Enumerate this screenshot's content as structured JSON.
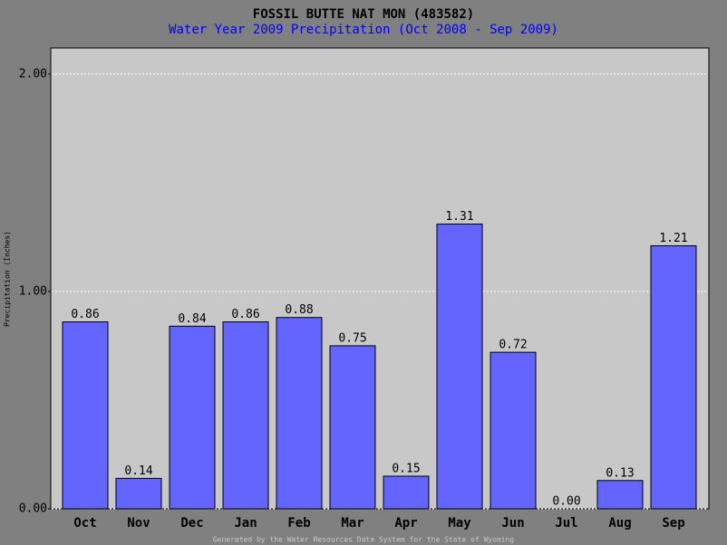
{
  "chart_data": {
    "type": "bar",
    "title": "FOSSIL BUTTE NAT MON (483582)",
    "subtitle": "Water Year 2009 Precipitation (Oct 2008 - Sep 2009)",
    "y_label": "Precipitation (Inches)",
    "footer": "Generated by the Water Resources Data System for the State of Wyoming",
    "categories": [
      "Oct",
      "Nov",
      "Dec",
      "Jan",
      "Feb",
      "Mar",
      "Apr",
      "May",
      "Jun",
      "Jul",
      "Aug",
      "Sep"
    ],
    "values": [
      0.86,
      0.14,
      0.84,
      0.86,
      0.88,
      0.75,
      0.15,
      1.31,
      0.72,
      0,
      0.13,
      1.21
    ],
    "value_labels": [
      "0.86",
      "0.14",
      "0.84",
      "0.86",
      "0.88",
      "0.75",
      "0.15",
      "1.31",
      "0.72",
      "0.00",
      "0.13",
      "1.21"
    ],
    "color": "#6464ff",
    "ylim": [
      0,
      2.12
    ],
    "yticks": [
      {
        "value": 0,
        "label": "0.00"
      },
      {
        "value": 1,
        "label": "1.00"
      },
      {
        "value": 2,
        "label": "2.00"
      }
    ],
    "grid": true
  }
}
